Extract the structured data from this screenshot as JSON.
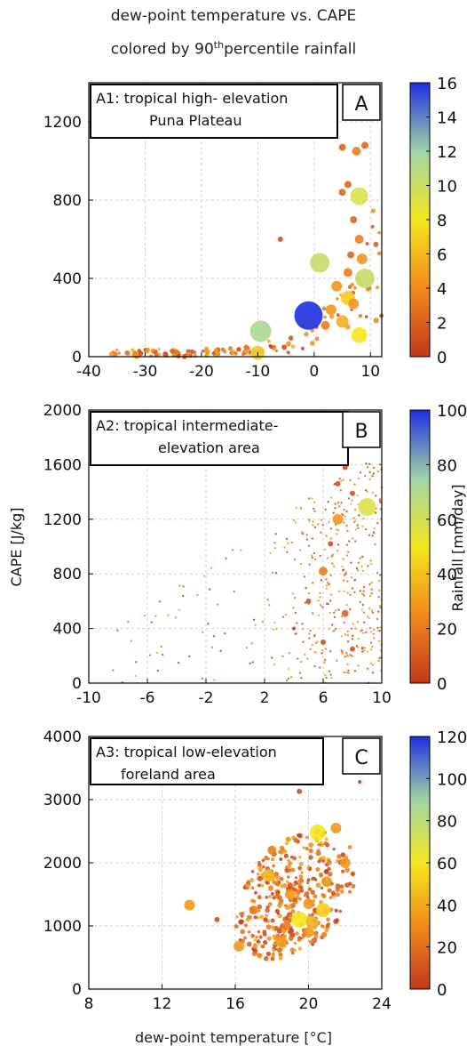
{
  "title_line1": "dew-point temperature vs. CAPE",
  "title_line2_pre": "colored by 90",
  "title_line2_sup": "th",
  "title_line2_post": "percentile rainfall",
  "xlabel": "dew-point temperature [°C]",
  "ylabel": "CAPE [J/kg]",
  "colorbar_label": "Rainfall [mm/day]",
  "colors": {
    "low": "#c0391b",
    "mid1": "#f08a1c",
    "mid2": "#f5e71e",
    "mid3": "#9fd4a6",
    "high": "#1f2fe0",
    "grid": "#cfcfcf"
  },
  "chart_data": [
    {
      "type": "scatter",
      "panel_letter": "A",
      "legend_box_line1": "A1: tropical high- elevation",
      "legend_box_line2": "Puna Plateau",
      "xlim": [
        -40,
        12
      ],
      "ylim": [
        0,
        1400
      ],
      "x_ticks": [
        -40,
        -30,
        -20,
        -10,
        0,
        10
      ],
      "y_ticks": [
        0,
        400,
        800,
        1200
      ],
      "colorbar_range": [
        0,
        16
      ],
      "colorbar_ticks": [
        0,
        2,
        4,
        6,
        8,
        10,
        12,
        14,
        16
      ],
      "grid": true,
      "points": [
        {
          "x": -1,
          "y": 210,
          "r": 16
        },
        {
          "x": -9.5,
          "y": 130,
          "r": 12
        },
        {
          "x": 1,
          "y": 480,
          "r": 11
        },
        {
          "x": 9,
          "y": 400,
          "r": 11
        },
        {
          "x": 8,
          "y": 820,
          "r": 10
        },
        {
          "x": 8,
          "y": 110,
          "r": 9
        },
        {
          "x": 6,
          "y": 300,
          "r": 8
        },
        {
          "x": 5,
          "y": 180,
          "r": 7
        },
        {
          "x": 7,
          "y": 270,
          "r": 6
        },
        {
          "x": 8.5,
          "y": 500,
          "r": 6
        },
        {
          "x": 7.5,
          "y": 1050,
          "r": 5
        },
        {
          "x": 9,
          "y": 1080,
          "r": 4
        },
        {
          "x": 5,
          "y": 1070,
          "r": 4
        },
        {
          "x": 6,
          "y": 880,
          "r": 4
        },
        {
          "x": 5,
          "y": 840,
          "r": 4
        },
        {
          "x": -6,
          "y": 600,
          "r": 3
        },
        {
          "x": -10,
          "y": 20,
          "r": 8
        },
        {
          "x": 3,
          "y": 240,
          "r": 6
        },
        {
          "x": 2,
          "y": 160,
          "r": 5
        },
        {
          "x": 4,
          "y": 360,
          "r": 6
        },
        {
          "x": 6,
          "y": 430,
          "r": 5
        },
        {
          "x": 8,
          "y": 600,
          "r": 5
        },
        {
          "x": 7,
          "y": 700,
          "r": 4
        },
        {
          "x": 6.5,
          "y": 520,
          "r": 4
        }
      ]
    },
    {
      "type": "scatter",
      "panel_letter": "B",
      "legend_box_line1": "A2: tropical intermediate-",
      "legend_box_line2": "elevation area",
      "xlim": [
        -10,
        10
      ],
      "ylim": [
        0,
        2000
      ],
      "x_ticks": [
        -10,
        -6,
        -2,
        2,
        6,
        10
      ],
      "y_ticks": [
        0,
        400,
        800,
        1200,
        1600,
        2000
      ],
      "colorbar_range": [
        0,
        100
      ],
      "colorbar_ticks": [
        0,
        20,
        40,
        60,
        80,
        100
      ],
      "grid": true,
      "points": [
        {
          "x": 9,
          "y": 1290,
          "r": 10
        },
        {
          "x": 7,
          "y": 1200,
          "r": 6
        },
        {
          "x": 6,
          "y": 820,
          "r": 5
        },
        {
          "x": 7.5,
          "y": 510,
          "r": 4
        },
        {
          "x": 7,
          "y": 1460,
          "r": 3
        },
        {
          "x": 7.5,
          "y": 1580,
          "r": 3
        },
        {
          "x": 8,
          "y": 1390,
          "r": 3
        },
        {
          "x": 6.5,
          "y": 1020,
          "r": 3
        },
        {
          "x": 5,
          "y": 600,
          "r": 3
        },
        {
          "x": 6,
          "y": 300,
          "r": 3
        },
        {
          "x": 8,
          "y": 250,
          "r": 3
        },
        {
          "x": 4,
          "y": 400,
          "r": 2
        }
      ]
    },
    {
      "type": "scatter",
      "panel_letter": "C",
      "legend_box_line1": "A3: tropical low-elevation",
      "legend_box_line2": "foreland area",
      "xlim": [
        8,
        24
      ],
      "ylim": [
        0,
        4000
      ],
      "x_ticks": [
        8,
        12,
        16,
        20,
        24
      ],
      "y_ticks": [
        0,
        1000,
        2000,
        3000,
        4000
      ],
      "colorbar_range": [
        0,
        120
      ],
      "colorbar_ticks": [
        0,
        20,
        40,
        60,
        80,
        100,
        120
      ],
      "grid": true,
      "points": [
        {
          "x": 19.5,
          "y": 1100,
          "r": 9
        },
        {
          "x": 20.5,
          "y": 2480,
          "r": 9
        },
        {
          "x": 20.8,
          "y": 1250,
          "r": 8
        },
        {
          "x": 17.8,
          "y": 1800,
          "r": 7
        },
        {
          "x": 13.5,
          "y": 1330,
          "r": 6
        },
        {
          "x": 16.2,
          "y": 680,
          "r": 6
        },
        {
          "x": 21.5,
          "y": 2550,
          "r": 6
        },
        {
          "x": 22,
          "y": 2000,
          "r": 6
        },
        {
          "x": 18.5,
          "y": 750,
          "r": 6
        },
        {
          "x": 19,
          "y": 1500,
          "r": 6
        },
        {
          "x": 20,
          "y": 1350,
          "r": 6
        },
        {
          "x": 18,
          "y": 2200,
          "r": 5
        },
        {
          "x": 21,
          "y": 1700,
          "r": 6
        },
        {
          "x": 17,
          "y": 1250,
          "r": 5
        },
        {
          "x": 20,
          "y": 900,
          "r": 6
        },
        {
          "x": 19.5,
          "y": 3130,
          "r": 3
        },
        {
          "x": 22.8,
          "y": 3280,
          "r": 2
        },
        {
          "x": 15,
          "y": 1100,
          "r": 3
        },
        {
          "x": 20.2,
          "y": 1050,
          "r": 7
        },
        {
          "x": 18.8,
          "y": 1000,
          "r": 5
        }
      ]
    }
  ]
}
